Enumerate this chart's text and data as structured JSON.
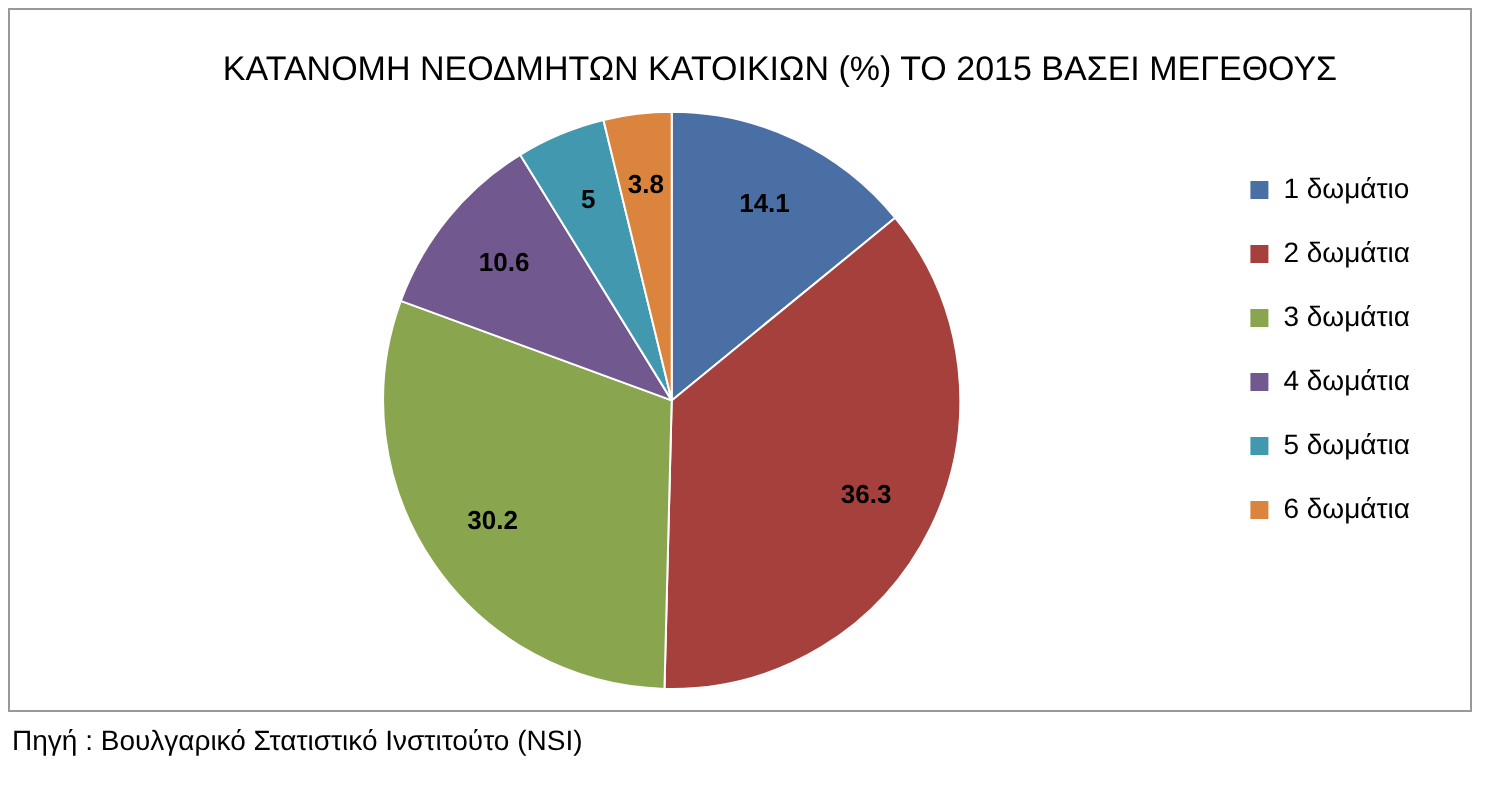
{
  "chart_data": {
    "type": "pie",
    "title": "ΚΑΤΑΝΟΜΗ ΝΕΟΔΜΗΤΩΝ ΚΑΤΟΙΚΙΩΝ (%) ΤΟ 2015 ΒΑΣΕΙ ΜΕΓΕΘΟΥΣ",
    "categories": [
      "1 δωμάτιο",
      "2 δωμάτια",
      "3 δωμάτια",
      "4 δωμάτια",
      "5 δωμάτια",
      "6 δωμάτια"
    ],
    "values": [
      14.1,
      36.3,
      30.2,
      10.6,
      5,
      3.8
    ],
    "colors": [
      "#4a6fa5",
      "#a5403d",
      "#89a54e",
      "#71588f",
      "#4198af",
      "#db843d"
    ],
    "data_labels": true,
    "legend": "right",
    "annotations": [
      "Πηγή : Βουλγαρικό Στατιστικό Ινστιτούτο (NSI)"
    ]
  }
}
